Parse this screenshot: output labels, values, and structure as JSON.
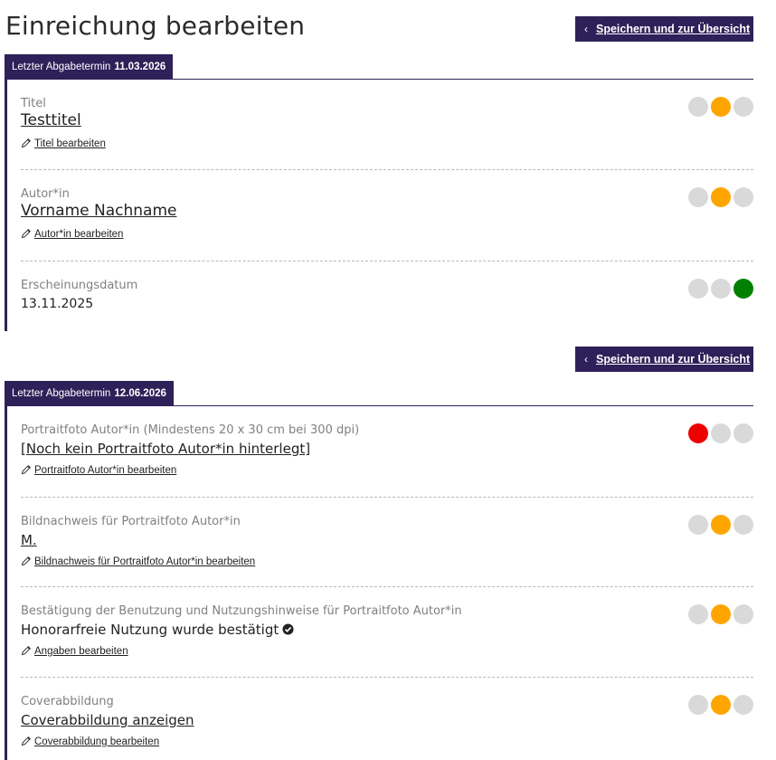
{
  "page_title": "Einreichung bearbeiten",
  "save_button_label": "Speichern und zur Übersicht",
  "colors": {
    "accent": "#2e2159",
    "inactive": "#d9d9d9",
    "red": "#ee0000",
    "orange": "#ffa500",
    "green": "#008000"
  },
  "sections": [
    {
      "deadline_label": "Letzter Abgabetermin",
      "deadline_date": "11.03.2026",
      "fields": [
        {
          "label": "Titel",
          "value": "Testtitel",
          "edit_label": "Titel bearbeiten",
          "status": "orange"
        },
        {
          "label": "Autor*in",
          "value": "Vorname Nachname",
          "edit_label": "Autor*in bearbeiten",
          "status": "orange"
        },
        {
          "label": "Erscheinungsdatum",
          "value": "13.11.2025",
          "status": "green"
        }
      ]
    },
    {
      "deadline_label": "Letzter Abgabetermin",
      "deadline_date": "12.06.2026",
      "fields": [
        {
          "label": "Portraitfoto Autor*in (Mindestens 20 x 30 cm bei 300 dpi)",
          "value": "[Noch kein Portraitfoto Autor*in hinterlegt]",
          "edit_label": "Portraitfoto Autor*in bearbeiten",
          "status": "red"
        },
        {
          "label": "Bildnachweis für Portraitfoto Autor*in",
          "value": "M.",
          "edit_label": "Bildnachweis für Portraitfoto Autor*in bearbeiten",
          "status": "orange"
        },
        {
          "label": "Bestätigung der Benutzung und Nutzungshinweise für Portraitfoto Autor*in",
          "value": "Honorarfreie Nutzung wurde bestätigt",
          "edit_label": "Angaben bearbeiten",
          "status": "orange",
          "icon": "check-circle-icon"
        },
        {
          "label": "Coverabbildung",
          "value": "Coverabbildung anzeigen ",
          "edit_label": "Coverabbildung bearbeiten",
          "status": "orange"
        }
      ]
    }
  ]
}
